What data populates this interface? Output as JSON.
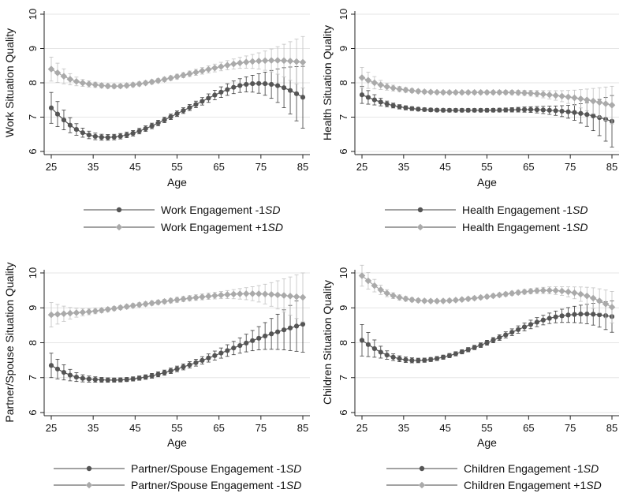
{
  "chart_data": [
    {
      "type": "line",
      "xlabel": "Age",
      "ylabel": "Work Situation Quality",
      "xlim": [
        25,
        85
      ],
      "ylim": [
        6,
        10
      ],
      "xticks": [
        "25",
        "35",
        "45",
        "55",
        "65",
        "75",
        "85"
      ],
      "yticks": [
        "6",
        "7",
        "8",
        "9",
        "10"
      ],
      "grid": true,
      "legend_position": "bottom",
      "error_bars": true,
      "series": [
        {
          "name": "Work Engagement -1SD",
          "color": "#555555",
          "x": [
            25,
            30,
            35,
            40,
            45,
            50,
            55,
            60,
            65,
            70,
            75,
            80,
            85
          ],
          "y": [
            7.27,
            6.72,
            6.45,
            6.42,
            6.55,
            6.8,
            7.1,
            7.4,
            7.7,
            7.92,
            7.98,
            7.88,
            7.58
          ],
          "error": [
            0.45,
            0.2,
            0.1,
            0.08,
            0.08,
            0.08,
            0.08,
            0.1,
            0.15,
            0.2,
            0.3,
            0.55,
            0.9
          ]
        },
        {
          "name": "Work Engagement +1SD",
          "color": "#aaaaaa",
          "x": [
            25,
            30,
            35,
            40,
            45,
            50,
            55,
            60,
            65,
            70,
            75,
            80,
            85
          ],
          "y": [
            8.4,
            8.08,
            7.95,
            7.9,
            7.95,
            8.05,
            8.18,
            8.32,
            8.46,
            8.58,
            8.64,
            8.65,
            8.6
          ],
          "error": [
            0.35,
            0.15,
            0.08,
            0.06,
            0.06,
            0.06,
            0.07,
            0.09,
            0.12,
            0.16,
            0.25,
            0.45,
            0.75
          ]
        }
      ]
    },
    {
      "type": "line",
      "xlabel": "Age",
      "ylabel": "Health Situation Quality",
      "xlim": [
        25,
        85
      ],
      "ylim": [
        6,
        10
      ],
      "xticks": [
        "25",
        "35",
        "45",
        "55",
        "65",
        "75",
        "85"
      ],
      "yticks": [
        "6",
        "7",
        "8",
        "9",
        "10"
      ],
      "grid": true,
      "legend_position": "bottom",
      "error_bars": true,
      "series": [
        {
          "name": "Health Engagement -1SD",
          "color": "#555555",
          "x": [
            25,
            30,
            35,
            40,
            45,
            50,
            55,
            60,
            65,
            70,
            75,
            80,
            85
          ],
          "y": [
            7.65,
            7.42,
            7.28,
            7.22,
            7.2,
            7.2,
            7.2,
            7.21,
            7.22,
            7.2,
            7.15,
            7.05,
            6.88
          ],
          "error": [
            0.25,
            0.1,
            0.06,
            0.05,
            0.05,
            0.05,
            0.05,
            0.06,
            0.08,
            0.12,
            0.2,
            0.4,
            0.75
          ]
        },
        {
          "name": "Health Engagement -1SD",
          "color": "#aaaaaa",
          "x": [
            25,
            30,
            35,
            40,
            45,
            50,
            55,
            60,
            65,
            70,
            75,
            80,
            85
          ],
          "y": [
            8.15,
            7.92,
            7.8,
            7.74,
            7.72,
            7.72,
            7.72,
            7.72,
            7.7,
            7.65,
            7.58,
            7.48,
            7.35
          ],
          "error": [
            0.3,
            0.12,
            0.07,
            0.05,
            0.05,
            0.05,
            0.05,
            0.06,
            0.08,
            0.12,
            0.2,
            0.35,
            0.55
          ]
        }
      ]
    },
    {
      "type": "line",
      "xlabel": "Age",
      "ylabel": "Partner/Spouse Situation Quality",
      "xlim": [
        25,
        85
      ],
      "ylim": [
        6,
        10
      ],
      "xticks": [
        "25",
        "35",
        "45",
        "55",
        "65",
        "75",
        "85"
      ],
      "yticks": [
        "6",
        "7",
        "8",
        "9",
        "10"
      ],
      "grid": true,
      "legend_position": "bottom",
      "error_bars": true,
      "series": [
        {
          "name": "Partner/Spouse Engagement -1SD",
          "color": "#555555",
          "x": [
            25,
            30,
            35,
            40,
            45,
            50,
            55,
            60,
            65,
            70,
            75,
            80,
            85
          ],
          "y": [
            7.35,
            7.05,
            6.95,
            6.93,
            6.97,
            7.08,
            7.25,
            7.45,
            7.68,
            7.92,
            8.15,
            8.35,
            8.53
          ],
          "error": [
            0.35,
            0.15,
            0.08,
            0.06,
            0.06,
            0.07,
            0.08,
            0.1,
            0.14,
            0.22,
            0.35,
            0.55,
            0.8
          ]
        },
        {
          "name": "Partner/Spouse Engagement -1SD",
          "color": "#aaaaaa",
          "x": [
            25,
            30,
            35,
            40,
            45,
            50,
            55,
            60,
            65,
            70,
            75,
            80,
            85
          ],
          "y": [
            8.8,
            8.85,
            8.9,
            8.98,
            9.07,
            9.15,
            9.23,
            9.3,
            9.36,
            9.4,
            9.4,
            9.36,
            9.3
          ],
          "error": [
            0.35,
            0.15,
            0.08,
            0.06,
            0.06,
            0.06,
            0.07,
            0.08,
            0.1,
            0.15,
            0.25,
            0.45,
            0.7
          ]
        }
      ]
    },
    {
      "type": "line",
      "xlabel": "Age",
      "ylabel": "Children Situation Quality",
      "xlim": [
        25,
        85
      ],
      "ylim": [
        6,
        10
      ],
      "xticks": [
        "25",
        "35",
        "45",
        "55",
        "65",
        "75",
        "85"
      ],
      "yticks": [
        "6",
        "7",
        "8",
        "9",
        "10"
      ],
      "grid": true,
      "legend_position": "bottom",
      "error_bars": true,
      "series": [
        {
          "name": "Children Engagement -1SD",
          "color": "#555555",
          "x": [
            25,
            30,
            35,
            40,
            45,
            50,
            55,
            60,
            65,
            70,
            75,
            80,
            85
          ],
          "y": [
            8.07,
            7.7,
            7.52,
            7.5,
            7.6,
            7.78,
            8.0,
            8.25,
            8.5,
            8.7,
            8.8,
            8.82,
            8.75
          ],
          "error": [
            0.45,
            0.15,
            0.08,
            0.06,
            0.06,
            0.06,
            0.07,
            0.09,
            0.12,
            0.15,
            0.22,
            0.3,
            0.45
          ]
        },
        {
          "name": "Children Engagement +1SD",
          "color": "#aaaaaa",
          "x": [
            25,
            30,
            35,
            40,
            45,
            50,
            55,
            60,
            65,
            70,
            75,
            80,
            85
          ],
          "y": [
            9.92,
            9.48,
            9.27,
            9.2,
            9.2,
            9.25,
            9.32,
            9.4,
            9.47,
            9.5,
            9.45,
            9.3,
            9.02
          ],
          "error": [
            0.3,
            0.12,
            0.07,
            0.05,
            0.05,
            0.05,
            0.05,
            0.06,
            0.07,
            0.1,
            0.15,
            0.28,
            0.45
          ]
        }
      ]
    }
  ]
}
